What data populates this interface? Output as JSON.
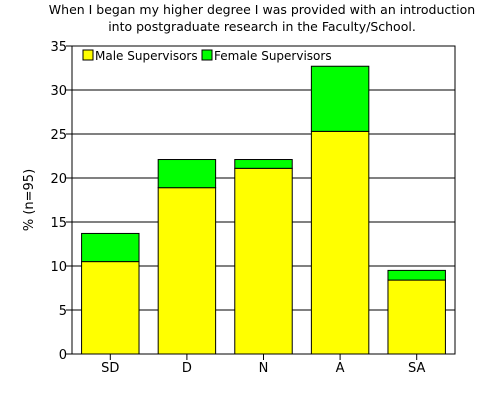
{
  "chart_data": {
    "type": "bar",
    "stacked": true,
    "title_lines": [
      "When I began my higher degree I was provided with an introduction",
      "into postgraduate research in the Faculty/School."
    ],
    "ylabel": "% (n=95)",
    "xlabel": "",
    "categories": [
      "SD",
      "D",
      "N",
      "A",
      "SA"
    ],
    "series": [
      {
        "name": "Male Supervisors",
        "color": "#ffff00",
        "values": [
          10.5,
          18.9,
          21.1,
          25.3,
          8.4
        ]
      },
      {
        "name": "Female Supervisors",
        "color": "#00ff00",
        "values": [
          3.2,
          3.2,
          1.0,
          7.4,
          1.1
        ]
      }
    ],
    "ylim": [
      0,
      35
    ],
    "yticks": [
      0,
      5,
      10,
      15,
      20,
      25,
      30,
      35
    ],
    "grid": "horizontal",
    "legend_position": "top-left"
  }
}
